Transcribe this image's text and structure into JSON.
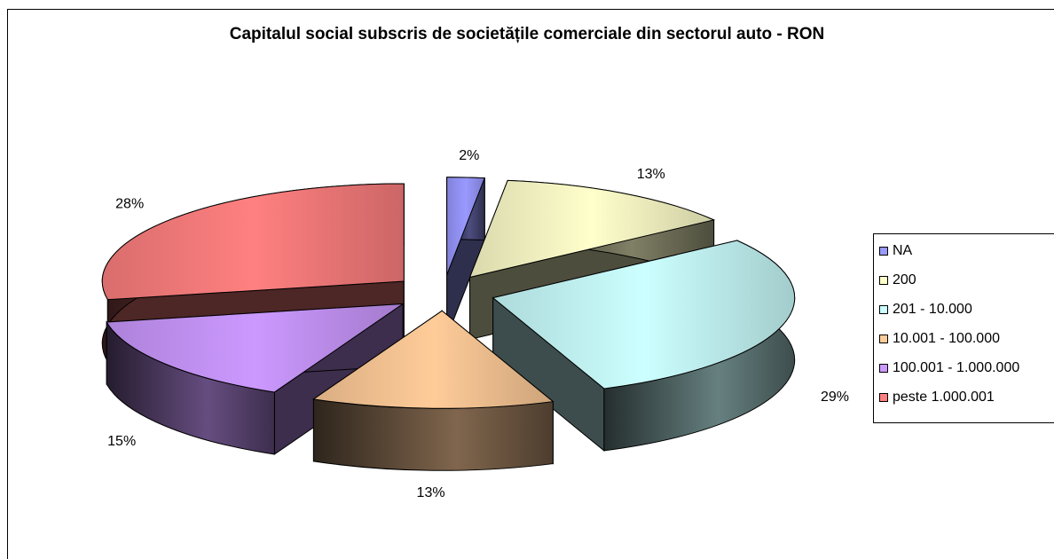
{
  "chart_data": {
    "type": "pie",
    "title": "Capitalul social subscris de societățile comerciale din sectorul auto - RON",
    "labels_format": "percent",
    "legend_position": "right",
    "slices": [
      {
        "label": "NA",
        "value": 2,
        "display": "2%",
        "color": "#9999ff"
      },
      {
        "label": "200",
        "value": 13,
        "display": "13%",
        "color": "#ffffcc"
      },
      {
        "label": "201 - 10.000",
        "value": 29,
        "display": "29%",
        "color": "#ccffff"
      },
      {
        "label": "10.001 - 100.000",
        "value": 13,
        "display": "13%",
        "color": "#ffcc99"
      },
      {
        "label": "100.001 - 1.000.000",
        "value": 15,
        "display": "15%",
        "color": "#cc99ff"
      },
      {
        "label": "peste 1.000.001",
        "value": 28,
        "display": "28%",
        "color": "#ff8080"
      }
    ]
  }
}
